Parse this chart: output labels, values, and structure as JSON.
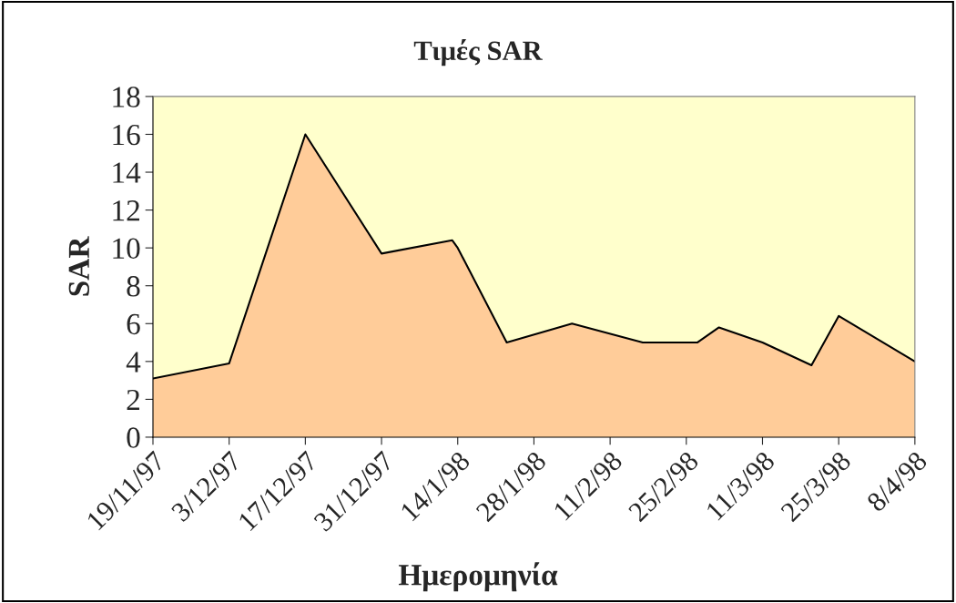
{
  "chart_data": {
    "type": "area",
    "title": "Τιμές SAR",
    "xlabel": "Ημερομηνία",
    "ylabel": "SAR",
    "x": [
      "1997-11-19",
      "1997-12-03",
      "1997-12-17",
      "1997-12-31",
      "1998-01-13",
      "1998-01-14",
      "1998-01-23",
      "1998-02-04",
      "1998-02-17",
      "1998-02-27",
      "1998-03-03",
      "1998-03-11",
      "1998-03-20",
      "1998-03-25",
      "1998-04-08"
    ],
    "series": [
      {
        "color": "#ffcc99",
        "values": [
          3.1,
          3.9,
          16,
          9.7,
          10.4,
          10.0,
          5.0,
          6.0,
          5.0,
          5.0,
          5.8,
          5.0,
          3.8,
          6.4,
          4.0
        ]
      }
    ],
    "xlim": [
      "1997-11-19",
      "1998-04-08"
    ],
    "xticks": [
      {
        "value": "1997-11-19",
        "label": "19/11/97"
      },
      {
        "value": "1997-12-03",
        "label": "3/12/97"
      },
      {
        "value": "1997-12-17",
        "label": "17/12/97"
      },
      {
        "value": "1997-12-31",
        "label": "31/12/97"
      },
      {
        "value": "1998-01-14",
        "label": "14/1/98"
      },
      {
        "value": "1998-01-28",
        "label": "28/1/98"
      },
      {
        "value": "1998-02-11",
        "label": "11/2/98"
      },
      {
        "value": "1998-02-25",
        "label": "25/2/98"
      },
      {
        "value": "1998-03-11",
        "label": "11/3/98"
      },
      {
        "value": "1998-03-25",
        "label": "25/3/98"
      },
      {
        "value": "1998-04-08",
        "label": "8/4/98"
      }
    ],
    "ylim": [
      0,
      18
    ],
    "yticks": [
      0,
      2,
      4,
      6,
      8,
      10,
      12,
      14,
      16,
      18
    ],
    "grid": false,
    "legend": false
  }
}
